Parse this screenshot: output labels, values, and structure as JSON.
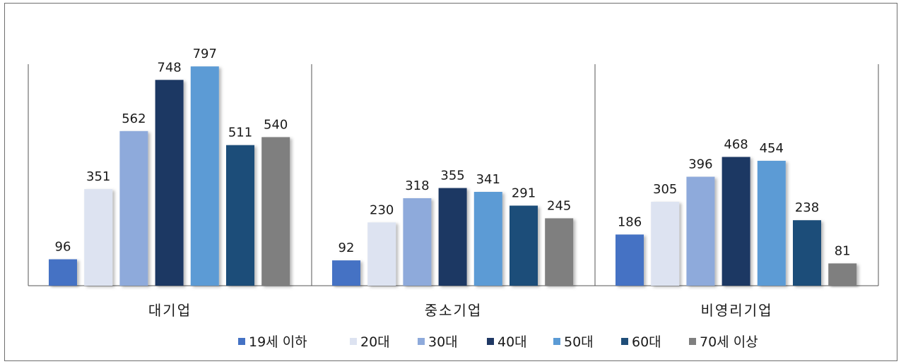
{
  "chart_data": {
    "type": "bar",
    "categories": [
      "대기업",
      "중소기업",
      "비영리기업"
    ],
    "series": [
      {
        "name": "19세 이하",
        "color": "#4472c4",
        "values": [
          96,
          92,
          186
        ]
      },
      {
        "name": "20대",
        "color": "#dde3f1",
        "values": [
          351,
          230,
          305
        ]
      },
      {
        "name": "30대",
        "color": "#8eaadb",
        "values": [
          562,
          318,
          396
        ]
      },
      {
        "name": "40대",
        "color": "#1f3864",
        "values": [
          748,
          355,
          468
        ]
      },
      {
        "name": "50대",
        "color": "#5b9bd5",
        "values": [
          797,
          341,
          454
        ]
      },
      {
        "name": "60대",
        "color": "#1f4e79",
        "values": [
          511,
          291,
          238
        ]
      },
      {
        "name": "70세 이상",
        "color": "#7f7f7f",
        "values": [
          540,
          245,
          81
        ]
      }
    ],
    "ylim": [
      0,
      800
    ],
    "legend_position": "bottom",
    "grid": false
  }
}
